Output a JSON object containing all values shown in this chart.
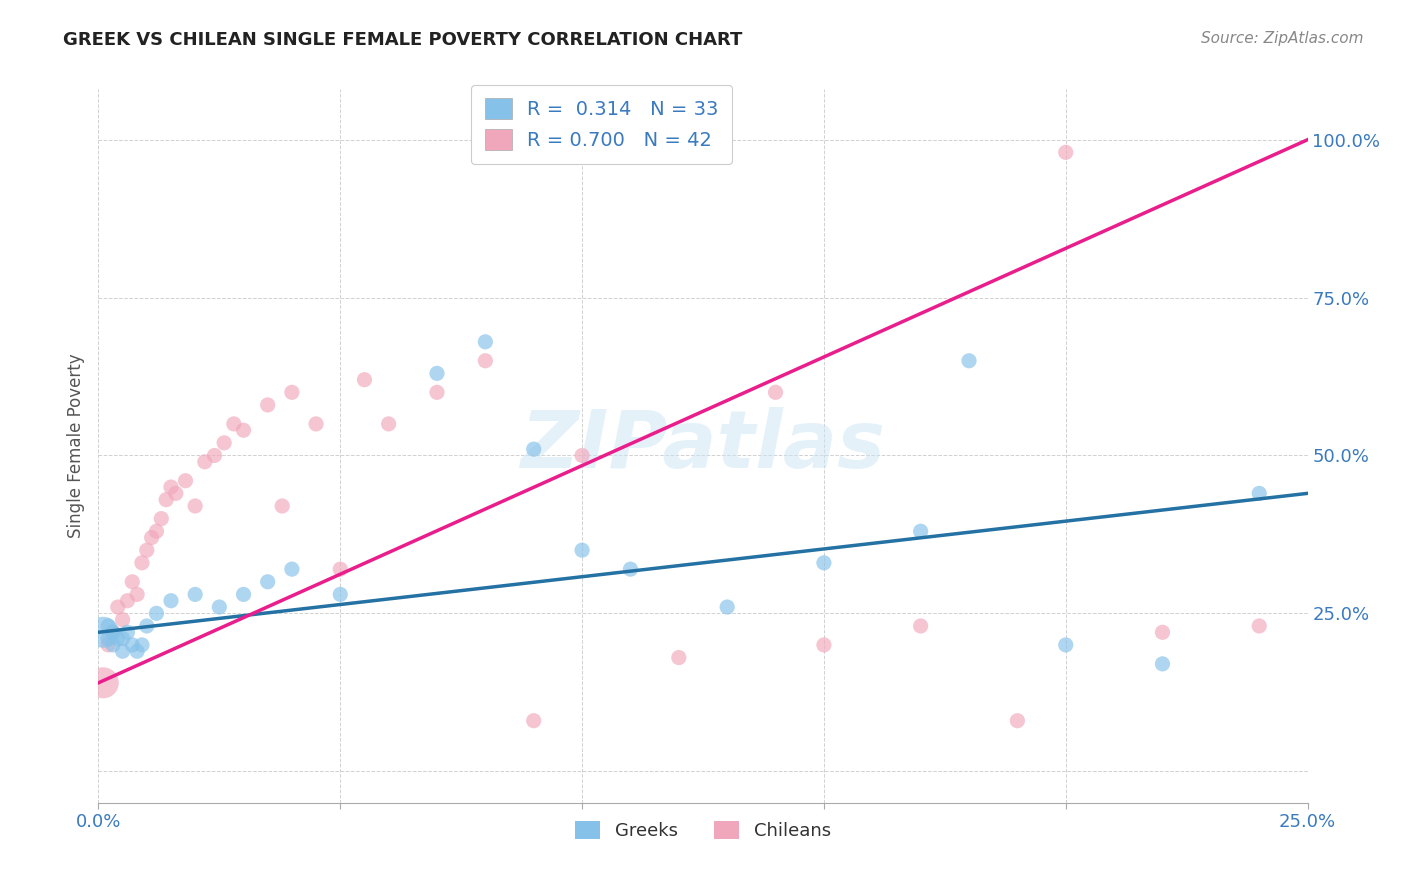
{
  "title": "GREEK VS CHILEAN SINGLE FEMALE POVERTY CORRELATION CHART",
  "source": "Source: ZipAtlas.com",
  "ylabel": "Single Female Poverty",
  "watermark": "ZIPatlas",
  "greek_R": "0.314",
  "greek_N": "33",
  "chilean_R": "0.700",
  "chilean_N": "42",
  "blue_color": "#85c1e9",
  "pink_color": "#f1a7bb",
  "blue_line_color": "#2471a3",
  "pink_line_color": "#e91e8c",
  "legend_label_greek": "Greeks",
  "legend_label_chilean": "Chileans",
  "greeks_x": [
    0.001,
    0.002,
    0.002,
    0.003,
    0.003,
    0.004,
    0.005,
    0.005,
    0.006,
    0.007,
    0.008,
    0.009,
    0.01,
    0.012,
    0.015,
    0.02,
    0.025,
    0.03,
    0.035,
    0.04,
    0.05,
    0.07,
    0.08,
    0.09,
    0.1,
    0.11,
    0.13,
    0.15,
    0.17,
    0.18,
    0.2,
    0.22,
    0.24
  ],
  "greeks_y": [
    0.22,
    0.21,
    0.23,
    0.2,
    0.22,
    0.21,
    0.19,
    0.21,
    0.22,
    0.2,
    0.19,
    0.2,
    0.23,
    0.25,
    0.27,
    0.28,
    0.26,
    0.28,
    0.3,
    0.32,
    0.28,
    0.63,
    0.68,
    0.51,
    0.35,
    0.32,
    0.26,
    0.33,
    0.38,
    0.65,
    0.2,
    0.17,
    0.44
  ],
  "greeks_size": [
    500,
    120,
    120,
    120,
    120,
    120,
    120,
    120,
    120,
    120,
    120,
    120,
    120,
    120,
    120,
    120,
    120,
    120,
    120,
    120,
    120,
    120,
    120,
    120,
    120,
    120,
    120,
    120,
    120,
    120,
    120,
    120,
    120
  ],
  "chileans_x": [
    0.001,
    0.002,
    0.003,
    0.004,
    0.005,
    0.006,
    0.007,
    0.008,
    0.009,
    0.01,
    0.011,
    0.012,
    0.013,
    0.014,
    0.015,
    0.016,
    0.018,
    0.02,
    0.022,
    0.024,
    0.026,
    0.028,
    0.03,
    0.035,
    0.038,
    0.04,
    0.045,
    0.05,
    0.055,
    0.06,
    0.07,
    0.08,
    0.09,
    0.1,
    0.12,
    0.14,
    0.15,
    0.17,
    0.19,
    0.2,
    0.22,
    0.24
  ],
  "chileans_y": [
    0.14,
    0.2,
    0.22,
    0.26,
    0.24,
    0.27,
    0.3,
    0.28,
    0.33,
    0.35,
    0.37,
    0.38,
    0.4,
    0.43,
    0.45,
    0.44,
    0.46,
    0.42,
    0.49,
    0.5,
    0.52,
    0.55,
    0.54,
    0.58,
    0.42,
    0.6,
    0.55,
    0.32,
    0.62,
    0.55,
    0.6,
    0.65,
    0.08,
    0.5,
    0.18,
    0.6,
    0.2,
    0.23,
    0.08,
    0.98,
    0.22,
    0.23
  ],
  "chileans_size": [
    500,
    120,
    120,
    120,
    120,
    120,
    120,
    120,
    120,
    120,
    120,
    120,
    120,
    120,
    120,
    120,
    120,
    120,
    120,
    120,
    120,
    120,
    120,
    120,
    120,
    120,
    120,
    120,
    120,
    120,
    120,
    120,
    120,
    120,
    120,
    120,
    120,
    120,
    120,
    120,
    120,
    120
  ],
  "xlim": [
    0.0,
    0.25
  ],
  "ylim": [
    -0.05,
    1.08
  ],
  "greek_line_y0": 0.22,
  "greek_line_y1": 0.44,
  "chilean_line_y0": 0.14,
  "chilean_line_y1": 1.0
}
